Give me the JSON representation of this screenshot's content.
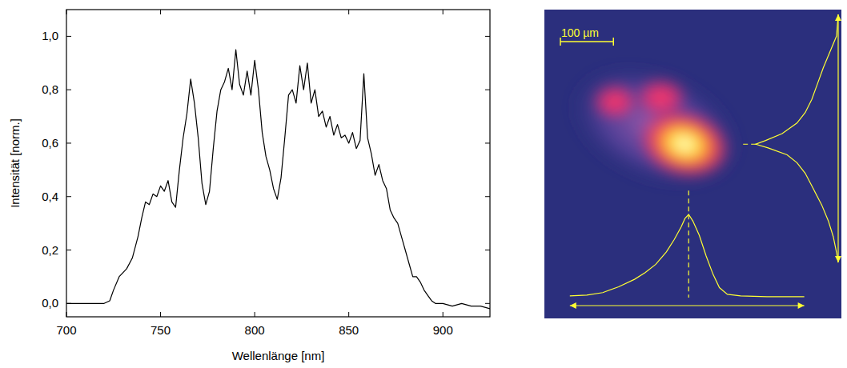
{
  "chart_data": [
    {
      "type": "line",
      "x_label": "Wellenlänge [nm]",
      "y_label": "Intensität [norm.]",
      "color": "#000000",
      "x": [
        700,
        710,
        720,
        723,
        725,
        728,
        732,
        735,
        738,
        740,
        742,
        744,
        746,
        748,
        750,
        752,
        754,
        756,
        758,
        760,
        762,
        764,
        766,
        768,
        770,
        772,
        774,
        776,
        778,
        780,
        782,
        784,
        786,
        788,
        790,
        792,
        794,
        796,
        798,
        800,
        802,
        804,
        806,
        808,
        810,
        812,
        814,
        816,
        818,
        820,
        822,
        824,
        826,
        828,
        830,
        832,
        834,
        836,
        838,
        840,
        842,
        844,
        846,
        848,
        850,
        852,
        854,
        856,
        858,
        860,
        862,
        864,
        866,
        868,
        870,
        872,
        874,
        876,
        878,
        880,
        882,
        884,
        886,
        888,
        890,
        892,
        894,
        896,
        900,
        905,
        910,
        915,
        920,
        925
      ],
      "values": [
        0,
        0,
        0,
        0.01,
        0.05,
        0.1,
        0.13,
        0.17,
        0.25,
        0.32,
        0.38,
        0.37,
        0.41,
        0.4,
        0.44,
        0.42,
        0.46,
        0.38,
        0.36,
        0.5,
        0.62,
        0.71,
        0.84,
        0.75,
        0.62,
        0.45,
        0.37,
        0.42,
        0.58,
        0.72,
        0.8,
        0.83,
        0.88,
        0.8,
        0.95,
        0.82,
        0.78,
        0.87,
        0.78,
        0.91,
        0.8,
        0.64,
        0.55,
        0.5,
        0.43,
        0.39,
        0.47,
        0.62,
        0.78,
        0.8,
        0.75,
        0.89,
        0.8,
        0.9,
        0.75,
        0.8,
        0.7,
        0.72,
        0.66,
        0.7,
        0.63,
        0.67,
        0.62,
        0.63,
        0.6,
        0.64,
        0.58,
        0.61,
        0.86,
        0.62,
        0.56,
        0.48,
        0.52,
        0.46,
        0.43,
        0.35,
        0.32,
        0.3,
        0.25,
        0.2,
        0.15,
        0.1,
        0.1,
        0.08,
        0.05,
        0.03,
        0.01,
        0,
        0,
        -0.01,
        0,
        -0.01,
        -0.01,
        -0.02
      ],
      "xlim": [
        700,
        925
      ],
      "ylim": [
        -0.05,
        1.1
      ],
      "xticks": [
        700,
        750,
        800,
        850,
        900
      ],
      "yticks": [
        {
          "value": 0,
          "label": "0,0"
        },
        {
          "value": 0.2,
          "label": "0,2"
        },
        {
          "value": 0.4,
          "label": "0,4"
        },
        {
          "value": 0.6,
          "label": "0,6"
        },
        {
          "value": 0.8,
          "label": "0,8"
        },
        {
          "value": 1.0,
          "label": "1,0"
        }
      ]
    },
    {
      "type": "image",
      "tick_labels": false,
      "color": "#ffff33",
      "xlim": [
        0,
        560
      ],
      "ylim": [
        0,
        585
      ],
      "scale_bar": {
        "value": 100,
        "label": "100 µm"
      },
      "profile_x": {
        "x": [
          48,
          80,
          110,
          140,
          170,
          190,
          210,
          230,
          245,
          258,
          265,
          272,
          280,
          292,
          305,
          318,
          330,
          345,
          370,
          420,
          490
        ],
        "values": [
          0.02,
          0.03,
          0.06,
          0.13,
          0.22,
          0.3,
          0.4,
          0.55,
          0.7,
          0.85,
          0.95,
          1.0,
          0.92,
          0.75,
          0.5,
          0.28,
          0.12,
          0.04,
          0.02,
          0.01,
          0.01
        ]
      },
      "profile_y": {
        "y": [
          9,
          50,
          80,
          110,
          140,
          170,
          195,
          215,
          235,
          248,
          255,
          262,
          275,
          290,
          310,
          340,
          370,
          400,
          430,
          460,
          479
        ],
        "values": [
          0,
          0.02,
          0.1,
          0.18,
          0.25,
          0.32,
          0.4,
          0.5,
          0.68,
          0.88,
          1.0,
          0.85,
          0.62,
          0.5,
          0.4,
          0.3,
          0.2,
          0.12,
          0.06,
          0.02,
          0
        ]
      }
    }
  ]
}
